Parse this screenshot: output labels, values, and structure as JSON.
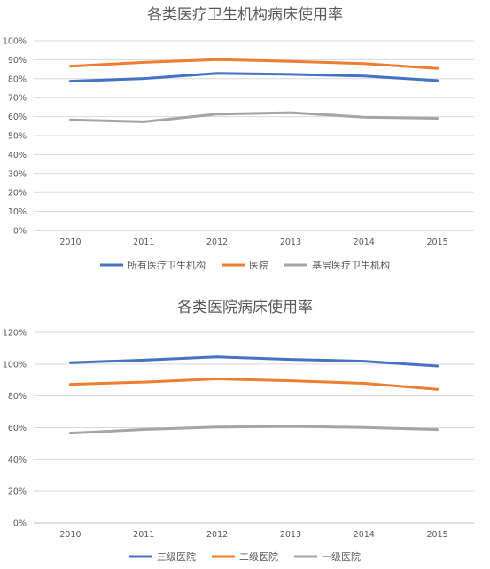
{
  "chart_data": [
    {
      "type": "line",
      "title": "各类医疗卫生机构病床使用率",
      "xlabel": "",
      "ylabel": "",
      "categories": [
        "2010",
        "2011",
        "2012",
        "2013",
        "2014",
        "2015"
      ],
      "y_ticks": [
        "0%",
        "10%",
        "20%",
        "30%",
        "40%",
        "50%",
        "60%",
        "70%",
        "80%",
        "90%",
        "100%"
      ],
      "ylim": [
        0,
        100
      ],
      "grid": true,
      "legend_position": "bottom",
      "series": [
        {
          "name": "所有医疗卫生机构",
          "color": "#4472C4",
          "values": [
            78.7,
            80.1,
            82.8,
            82.3,
            81.4,
            79.0
          ]
        },
        {
          "name": "医院",
          "color": "#ED7D31",
          "values": [
            86.6,
            88.6,
            90.1,
            89.1,
            88.0,
            85.4
          ]
        },
        {
          "name": "基层医疗卫生机构",
          "color": "#A5A5A5",
          "values": [
            58.3,
            57.3,
            61.3,
            62.1,
            59.7,
            59.1
          ]
        }
      ]
    },
    {
      "type": "line",
      "title": "各类医院病床使用率",
      "xlabel": "",
      "ylabel": "",
      "categories": [
        "2010",
        "2011",
        "2012",
        "2013",
        "2014",
        "2015"
      ],
      "y_ticks": [
        "0%",
        "20%",
        "40%",
        "60%",
        "80%",
        "100%",
        "120%"
      ],
      "ylim": [
        0,
        120
      ],
      "grid": true,
      "legend_position": "bottom",
      "series": [
        {
          "name": "三级医院",
          "color": "#4472C4",
          "values": [
            100.9,
            102.5,
            104.5,
            102.9,
            101.8,
            98.8
          ]
        },
        {
          "name": "二级医院",
          "color": "#ED7D31",
          "values": [
            87.3,
            88.7,
            90.7,
            89.5,
            87.9,
            84.1
          ]
        },
        {
          "name": "一级医院",
          "color": "#A5A5A5",
          "values": [
            56.6,
            58.9,
            60.4,
            60.9,
            60.1,
            58.8
          ]
        }
      ]
    }
  ]
}
